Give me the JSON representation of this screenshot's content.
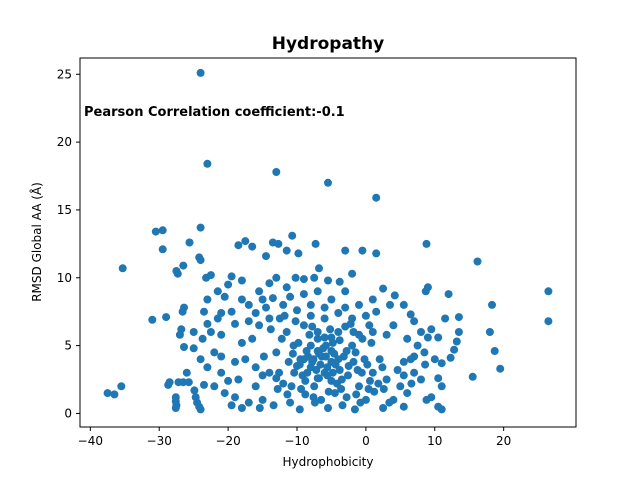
{
  "chart_data": {
    "type": "scatter",
    "title": "Hydropathy",
    "annotation": "Pearson Correlation coefficient:-0.1",
    "xlabel": "Hydrophobicity",
    "ylabel": "RMSD Global AA (Å)",
    "xlim": [
      -41.5,
      30.5
    ],
    "ylim": [
      -1.0,
      26.2
    ],
    "x_ticks": [
      -40,
      -30,
      -20,
      -10,
      0,
      10,
      20
    ],
    "y_ticks": [
      0,
      5,
      10,
      15,
      20,
      25
    ],
    "x_tick_labels": [
      "−40",
      "−30",
      "−20",
      "−10",
      "0",
      "10",
      "20"
    ],
    "y_tick_labels": [
      "0",
      "5",
      "10",
      "15",
      "20",
      "25"
    ],
    "marker_color": "#1f77b4",
    "grid": false,
    "series": [
      {
        "points": [
          [
            -24.0,
            25.1
          ],
          [
            -23.0,
            18.4
          ],
          [
            -13.0,
            17.8
          ],
          [
            -5.5,
            17.0
          ],
          [
            1.5,
            15.9
          ],
          [
            -35.3,
            10.7
          ],
          [
            -37.5,
            1.5
          ],
          [
            -36.5,
            1.4
          ],
          [
            -35.5,
            2.0
          ],
          [
            -31.0,
            6.9
          ],
          [
            -30.5,
            13.4
          ],
          [
            -29.5,
            13.5
          ],
          [
            -29.5,
            12.1
          ],
          [
            -27.5,
            10.5
          ],
          [
            -27.3,
            10.3
          ],
          [
            -26.5,
            10.9
          ],
          [
            -25.6,
            12.6
          ],
          [
            -24.0,
            13.7
          ],
          [
            -24.2,
            11.5
          ],
          [
            -24.0,
            11.3
          ],
          [
            -29.0,
            7.1
          ],
          [
            -28.5,
            2.3
          ],
          [
            -28.7,
            2.1
          ],
          [
            -27.6,
            1.2
          ],
          [
            -27.6,
            0.9
          ],
          [
            -27.5,
            0.6
          ],
          [
            -27.6,
            0.4
          ],
          [
            -27.2,
            2.3
          ],
          [
            -26.5,
            2.3
          ],
          [
            -25.7,
            2.3
          ],
          [
            -26.4,
            4.9
          ],
          [
            -26.8,
            6.2
          ],
          [
            -26.6,
            7.5
          ],
          [
            -26.4,
            7.8
          ],
          [
            -24.9,
            1.7
          ],
          [
            -24.7,
            1.2
          ],
          [
            -24.5,
            0.8
          ],
          [
            -24.2,
            0.5
          ],
          [
            -24.0,
            0.3
          ],
          [
            -23.5,
            2.1
          ],
          [
            -23.7,
            5.5
          ],
          [
            -23.5,
            7.5
          ],
          [
            -23.2,
            10.0
          ],
          [
            -22.5,
            10.2
          ],
          [
            -21.5,
            9.0
          ],
          [
            -20.0,
            9.5
          ],
          [
            -19.5,
            10.1
          ],
          [
            -18.5,
            12.4
          ],
          [
            -17.5,
            12.7
          ],
          [
            -16.5,
            12.3
          ],
          [
            -14.5,
            11.6
          ],
          [
            -13.5,
            12.6
          ],
          [
            -12.7,
            12.5
          ],
          [
            -11.5,
            12.0
          ],
          [
            -10.7,
            13.1
          ],
          [
            -9.8,
            11.8
          ],
          [
            -7.3,
            12.5
          ],
          [
            -6.8,
            10.7
          ],
          [
            -3.0,
            12.0
          ],
          [
            -0.5,
            12.0
          ],
          [
            1.5,
            11.8
          ],
          [
            8.8,
            12.5
          ],
          [
            16.2,
            11.2
          ],
          [
            26.5,
            9.0
          ],
          [
            26.5,
            6.8
          ],
          [
            18.3,
            8.0
          ],
          [
            18.0,
            6.0
          ],
          [
            18.7,
            4.6
          ],
          [
            19.5,
            3.3
          ],
          [
            15.5,
            2.7
          ],
          [
            12.0,
            8.8
          ],
          [
            13.5,
            7.1
          ],
          [
            13.5,
            6.0
          ],
          [
            13.2,
            5.3
          ],
          [
            12.8,
            4.7
          ],
          [
            12.3,
            4.1
          ],
          [
            11.0,
            3.7
          ],
          [
            10.5,
            2.6
          ],
          [
            11.0,
            0.3
          ],
          [
            10.5,
            0.5
          ],
          [
            9.5,
            1.2
          ],
          [
            8.8,
            1.0
          ],
          [
            9.0,
            9.3
          ],
          [
            8.7,
            9.0
          ],
          [
            6.5,
            7.3
          ],
          [
            5.5,
            8.0
          ],
          [
            4.2,
            8.7
          ],
          [
            3.5,
            8.0
          ],
          [
            6.0,
            5.5
          ],
          [
            7.5,
            5.0
          ],
          [
            8.5,
            4.5
          ],
          [
            5.5,
            3.8
          ],
          [
            7.0,
            3.0
          ],
          [
            3.0,
            2.5
          ],
          [
            4.0,
            1.0
          ],
          [
            2.5,
            0.4
          ],
          [
            5.5,
            0.5
          ],
          [
            2.5,
            9.2
          ],
          [
            1.0,
            8.4
          ],
          [
            -2.0,
            10.3
          ],
          [
            -3.8,
            9.7
          ],
          [
            -5.5,
            9.8
          ],
          [
            -7.5,
            10.0
          ],
          [
            -9.0,
            9.9
          ],
          [
            -10.2,
            10.0
          ],
          [
            -11.5,
            9.3
          ],
          [
            -13.0,
            10.0
          ],
          [
            -14.0,
            9.6
          ],
          [
            -15.5,
            9.0
          ],
          [
            -17.0,
            8.0
          ],
          [
            -18.0,
            9.8
          ],
          [
            -19.5,
            7.5
          ],
          [
            -20.5,
            8.6
          ],
          [
            -21.5,
            7.0
          ],
          [
            -22.5,
            6.0
          ],
          [
            -22.0,
            4.5
          ],
          [
            -21.0,
            3.0
          ],
          [
            -20.5,
            1.5
          ],
          [
            -19.5,
            0.6
          ],
          [
            -18.5,
            2.5
          ],
          [
            -17.5,
            4.0
          ],
          [
            -16.5,
            5.5
          ],
          [
            -15.5,
            6.5
          ],
          [
            -14.5,
            7.8
          ],
          [
            -13.5,
            8.5
          ],
          [
            -12.5,
            7.0
          ],
          [
            -11.5,
            6.0
          ],
          [
            -10.5,
            5.0
          ],
          [
            -9.5,
            4.0
          ],
          [
            -8.5,
            3.0
          ],
          [
            -7.5,
            2.0
          ],
          [
            -6.5,
            1.0
          ],
          [
            -5.5,
            0.4
          ],
          [
            -4.5,
            1.5
          ],
          [
            -3.5,
            2.5
          ],
          [
            -2.5,
            3.5
          ],
          [
            -1.5,
            4.5
          ],
          [
            -0.5,
            5.5
          ],
          [
            0.5,
            6.5
          ],
          [
            1.5,
            7.5
          ],
          [
            -16.0,
            2.0
          ],
          [
            -15.0,
            1.0
          ],
          [
            -14.0,
            3.0
          ],
          [
            -13.0,
            4.5
          ],
          [
            -12.0,
            2.2
          ],
          [
            -11.0,
            0.8
          ],
          [
            -10.0,
            3.5
          ],
          [
            -9.0,
            6.5
          ],
          [
            -8.0,
            8.0
          ],
          [
            -7.0,
            5.5
          ],
          [
            -6.0,
            7.0
          ],
          [
            -5.0,
            3.8
          ],
          [
            -4.0,
            6.0
          ],
          [
            -3.0,
            7.8
          ],
          [
            -2.0,
            5.0
          ],
          [
            -1.0,
            2.0
          ],
          [
            0.0,
            1.0
          ],
          [
            1.0,
            3.0
          ],
          [
            2.0,
            4.0
          ],
          [
            3.0,
            5.8
          ],
          [
            4.0,
            6.5
          ],
          [
            5.0,
            2.0
          ],
          [
            6.0,
            1.5
          ],
          [
            7.0,
            4.2
          ],
          [
            8.0,
            2.5
          ],
          [
            -12.2,
            5.5
          ],
          [
            -11.2,
            3.8
          ],
          [
            -10.2,
            6.8
          ],
          [
            -9.2,
            2.8
          ],
          [
            -8.2,
            5.8
          ],
          [
            -7.2,
            3.2
          ],
          [
            -6.2,
            4.8
          ],
          [
            -5.2,
            6.2
          ],
          [
            -4.2,
            2.2
          ],
          [
            -3.2,
            4.2
          ],
          [
            -2.2,
            6.6
          ],
          [
            -1.2,
            3.2
          ],
          [
            -0.2,
            4.0
          ],
          [
            0.8,
            5.2
          ],
          [
            1.8,
            2.2
          ],
          [
            -12.8,
            1.8
          ],
          [
            -11.8,
            7.2
          ],
          [
            -10.8,
            2.0
          ],
          [
            -9.8,
            5.2
          ],
          [
            -8.8,
            1.4
          ],
          [
            -7.8,
            6.4
          ],
          [
            -6.8,
            2.6
          ],
          [
            -5.8,
            5.0
          ],
          [
            -4.8,
            3.0
          ],
          [
            -3.8,
            5.4
          ],
          [
            -2.8,
            1.2
          ],
          [
            -1.8,
            6.0
          ],
          [
            -0.8,
            0.8
          ],
          [
            0.2,
            3.6
          ],
          [
            1.2,
            1.6
          ],
          [
            -17.0,
            6.8
          ],
          [
            -18.0,
            5.2
          ],
          [
            -19.0,
            3.8
          ],
          [
            -20.0,
            2.4
          ],
          [
            -21.0,
            5.8
          ],
          [
            -22.0,
            2.0
          ],
          [
            -23.0,
            3.4
          ],
          [
            -24.0,
            4.0
          ],
          [
            -25.0,
            6.0
          ],
          [
            -26.0,
            3.0
          ],
          [
            -14.8,
            4.2
          ],
          [
            -13.8,
            6.2
          ],
          [
            -12.6,
            3.0
          ],
          [
            -10.6,
            4.4
          ],
          [
            -8.6,
            4.6
          ],
          [
            -6.6,
            3.6
          ],
          [
            -4.6,
            4.4
          ],
          [
            -2.6,
            2.8
          ],
          [
            -0.6,
            3.0
          ],
          [
            2.4,
            3.4
          ],
          [
            -9.4,
            1.8
          ],
          [
            -7.4,
            0.8
          ],
          [
            -5.4,
            1.6
          ],
          [
            -3.4,
            0.6
          ],
          [
            -1.4,
            1.4
          ],
          [
            0.6,
            2.4
          ],
          [
            2.6,
            1.8
          ],
          [
            4.6,
            3.2
          ],
          [
            6.6,
            2.2
          ],
          [
            8.6,
            3.6
          ],
          [
            -15.4,
            0.4
          ],
          [
            -13.4,
            0.6
          ],
          [
            -11.4,
            1.4
          ],
          [
            -9.6,
            0.3
          ],
          [
            -7.6,
            1.2
          ],
          [
            -5.6,
            2.8
          ],
          [
            -3.6,
            1.8
          ],
          [
            -1.6,
            0.3
          ],
          [
            0.4,
            1.8
          ],
          [
            3.4,
            0.8
          ],
          [
            -11.0,
            8.6
          ],
          [
            -9.0,
            8.8
          ],
          [
            -7.0,
            9.0
          ],
          [
            -5.0,
            8.4
          ],
          [
            -3.0,
            9.0
          ],
          [
            -1.0,
            8.0
          ],
          [
            -15.0,
            8.4
          ],
          [
            -19.0,
            6.6
          ],
          [
            -21.0,
            7.4
          ],
          [
            -23.0,
            8.4
          ],
          [
            -8.0,
            7.2
          ],
          [
            -6.0,
            7.8
          ],
          [
            -4.0,
            7.4
          ],
          [
            -2.0,
            7.0
          ],
          [
            0.0,
            7.2
          ],
          [
            -10.0,
            7.6
          ],
          [
            -12.0,
            8.0
          ],
          [
            -14.0,
            7.0
          ],
          [
            -16.0,
            7.4
          ],
          [
            -18.0,
            8.4
          ],
          [
            -7.0,
            6.0
          ],
          [
            -5.0,
            5.6
          ],
          [
            -3.0,
            6.4
          ],
          [
            -1.0,
            5.8
          ],
          [
            1.0,
            6.0
          ],
          [
            9.5,
            6.2
          ],
          [
            10.5,
            5.6
          ],
          [
            11.5,
            7.0
          ],
          [
            10.0,
            4.0
          ],
          [
            11.0,
            2.0
          ],
          [
            9.0,
            5.6
          ],
          [
            8.0,
            6.0
          ],
          [
            7.0,
            6.8
          ],
          [
            6.5,
            4.0
          ],
          [
            5.5,
            2.8
          ],
          [
            -27.0,
            5.8
          ],
          [
            -25.0,
            4.8
          ],
          [
            -23.0,
            6.6
          ],
          [
            -21.0,
            4.2
          ],
          [
            -19.0,
            1.2
          ],
          [
            -17.0,
            0.8
          ],
          [
            -15.0,
            2.8
          ],
          [
            -13.0,
            2.6
          ],
          [
            -16.0,
            3.4
          ],
          [
            -18.0,
            0.4
          ],
          [
            -8.4,
            4.2
          ],
          [
            -7.6,
            4.0
          ],
          [
            -6.4,
            4.2
          ],
          [
            -5.6,
            3.4
          ],
          [
            -4.4,
            3.6
          ],
          [
            -8.0,
            3.4
          ],
          [
            -7.0,
            4.6
          ],
          [
            -6.0,
            3.0
          ],
          [
            -5.0,
            4.6
          ],
          [
            -4.0,
            4.0
          ],
          [
            -9.0,
            4.0
          ],
          [
            -8.0,
            5.0
          ],
          [
            -7.0,
            2.6
          ],
          [
            -6.0,
            5.6
          ],
          [
            -5.0,
            2.4
          ],
          [
            -10.4,
            3.0
          ],
          [
            -9.6,
            3.6
          ],
          [
            -8.8,
            2.4
          ],
          [
            -7.8,
            3.8
          ],
          [
            -6.8,
            4.4
          ],
          [
            -5.8,
            4.2
          ],
          [
            -4.8,
            5.2
          ],
          [
            -3.8,
            3.2
          ],
          [
            -2.8,
            4.6
          ],
          [
            -1.8,
            3.8
          ]
        ]
      }
    ]
  }
}
